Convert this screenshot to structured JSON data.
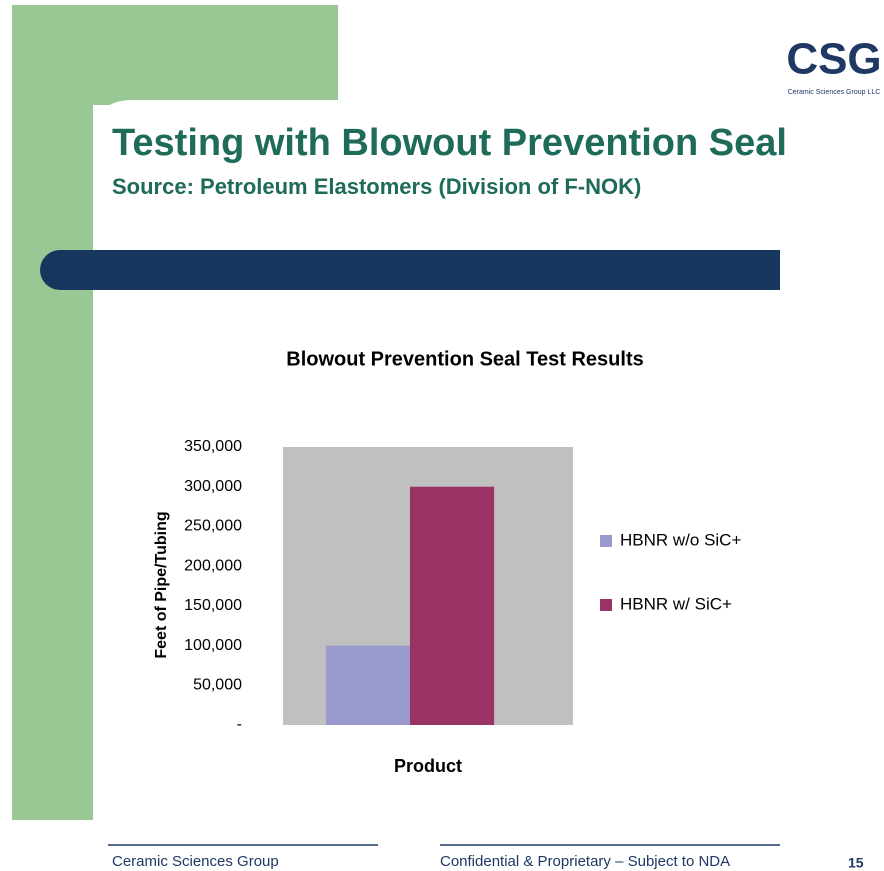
{
  "slide": {
    "title": "Testing with Blowout Prevention Seal",
    "subtitle": "Source: Petroleum Elastomers (Division of F-NOK)",
    "logo": "CSG",
    "logo_sub": "Ceramic Sciences Group LLC",
    "footer_left": "Ceramic Sciences Group",
    "footer_center": "Confidential & Proprietary – Subject to NDA",
    "page": "15"
  },
  "chart_data": {
    "type": "bar",
    "title": "Blowout Prevention Seal Test Results",
    "y_label": "Feet of Pipe/Tubing",
    "categories": [
      "Product"
    ],
    "series": [
      {
        "name": "HBNR w/o SiC+",
        "color": "#9999cc",
        "values": [
          100000
        ]
      },
      {
        "name": "HBNR w/ SiC+",
        "color": "#993366",
        "values": [
          300000
        ]
      }
    ],
    "ylim": [
      0,
      350000
    ],
    "yticks": [
      {
        "value": 0,
        "label": "-"
      },
      {
        "value": 50000,
        "label": "50,000"
      },
      {
        "value": 100000,
        "label": "100,000"
      },
      {
        "value": 150000,
        "label": "150,000"
      },
      {
        "value": 200000,
        "label": "200,000"
      },
      {
        "value": 250000,
        "label": "250,000"
      },
      {
        "value": 300000,
        "label": "300,000"
      },
      {
        "value": 350000,
        "label": "350,000"
      }
    ],
    "plot_background": "#c0c0c0"
  }
}
